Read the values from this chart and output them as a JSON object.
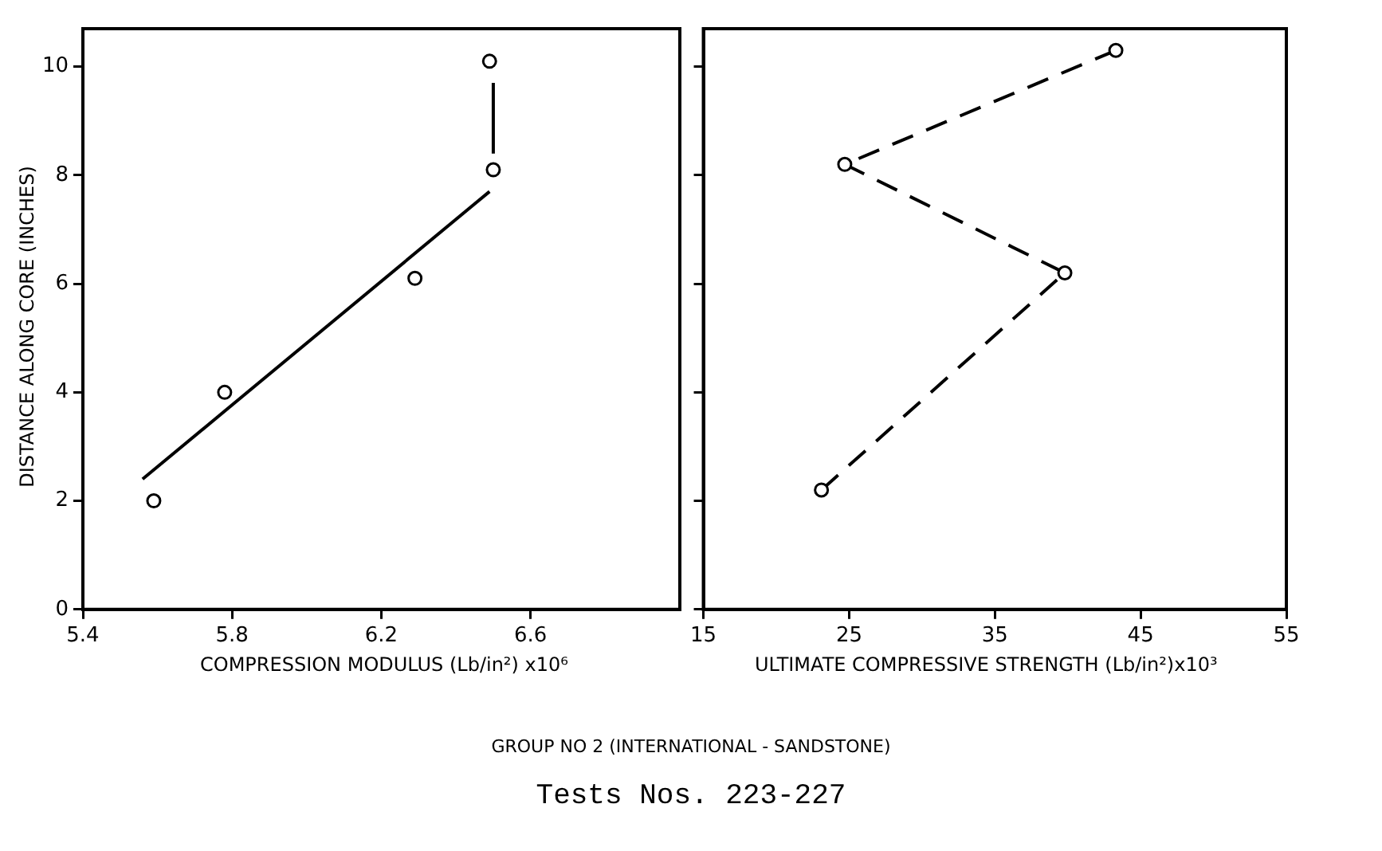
{
  "chart_data": [
    {
      "type": "scatter",
      "xlabel": "COMPRESSION MODULUS (Lb/in²) x10⁶",
      "ylabel": "DISTANCE ALONG CORE (INCHES)",
      "xlim": [
        5.4,
        7.0
      ],
      "xticks": [
        5.4,
        5.8,
        6.2,
        6.6
      ],
      "ylim": [
        0,
        10.7
      ],
      "yticks": [
        0,
        2,
        4,
        6,
        8,
        10
      ],
      "grid": false,
      "legend": false,
      "series": [
        {
          "color": "#000000",
          "marker": "circle",
          "x": [
            5.59,
            5.78,
            6.29,
            6.5,
            6.49
          ],
          "values": [
            2.0,
            4.0,
            6.1,
            8.1,
            10.1
          ]
        },
        {
          "type": "line",
          "color": "#000000",
          "marker": "none",
          "line_style": "solid",
          "x": [
            5.56,
            6.49
          ],
          "values": [
            2.4,
            7.7
          ]
        },
        {
          "type": "line",
          "color": "#000000",
          "marker": "none",
          "line_style": "solid",
          "x": [
            6.5,
            6.5
          ],
          "values": [
            8.4,
            9.7
          ]
        }
      ]
    },
    {
      "type": "line",
      "xlabel": "ULTIMATE COMPRESSIVE STRENGTH (Lb/in²)x10³",
      "xlim": [
        15,
        55
      ],
      "xticks": [
        15,
        25,
        35,
        45,
        55
      ],
      "ylim": [
        0,
        10.7
      ],
      "yticks": [
        0,
        2,
        4,
        6,
        8,
        10
      ],
      "tick_labels": "x",
      "grid": false,
      "legend": false,
      "annotations": [
        "GROUP NO 2 (INTERNATIONAL - SANDSTONE)",
        "Tests Nos. 223-227"
      ],
      "series": [
        {
          "color": "#000000",
          "marker": "circle",
          "line_style": "dashed",
          "x": [
            23.1,
            39.8,
            24.7,
            43.3
          ],
          "values": [
            2.2,
            6.2,
            8.2,
            10.3
          ]
        }
      ]
    }
  ]
}
